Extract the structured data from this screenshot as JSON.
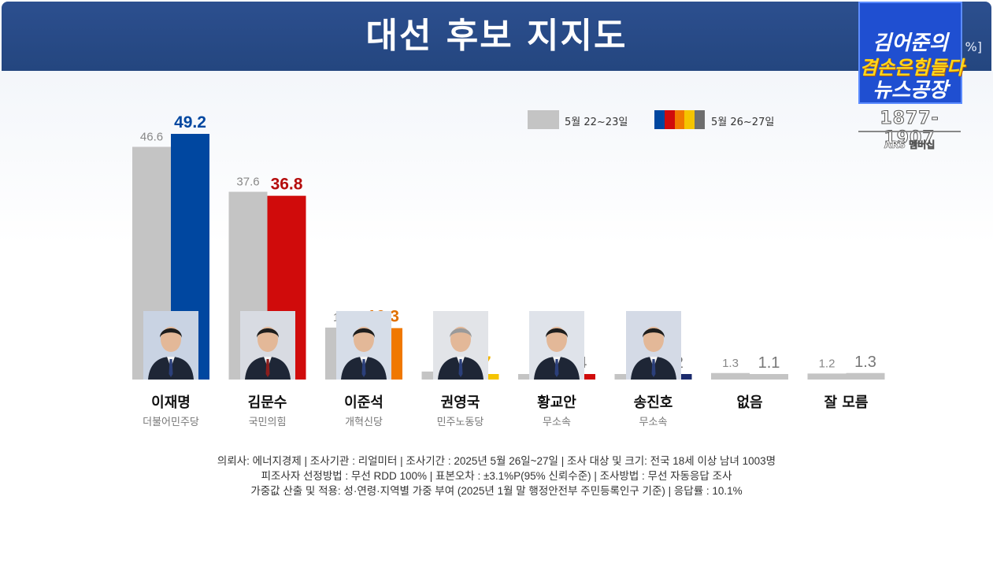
{
  "header": {
    "title": "대선 후보 지지도",
    "unit": "%]"
  },
  "logo": {
    "line1": "김어준의",
    "line2": "겸손은힘들다",
    "line3": "뉴스공장",
    "phone": "1877-1907",
    "sub": "ARS 멤버십"
  },
  "legend": {
    "prev_label": "5월 22~23일",
    "curr_label": "5월 26~27일",
    "curr_colors": [
      "#0047a0",
      "#d00b0b",
      "#f07800",
      "#f5c400",
      "#6e6e6e"
    ]
  },
  "candidates": [
    {
      "name": "이재명",
      "party": "더불어민주당"
    },
    {
      "name": "김문수",
      "party": "국민의힘"
    },
    {
      "name": "이준석",
      "party": "개혁신당"
    },
    {
      "name": "권영국",
      "party": "민주노동당"
    },
    {
      "name": "황교안",
      "party": "무소속"
    },
    {
      "name": "송진호",
      "party": "무소속"
    },
    {
      "name": "없음",
      "party": ""
    },
    {
      "name": "잘 모름",
      "party": ""
    }
  ],
  "chart_data": {
    "type": "bar",
    "categories": [
      "이재명",
      "김문수",
      "이준석",
      "권영국",
      "황교안",
      "송진호",
      "없음",
      "잘 모름"
    ],
    "series": [
      {
        "name": "5월 22~23일",
        "color": "#c4c4c4",
        "values": [
          46.6,
          37.6,
          10.4,
          1.6,
          0.9,
          0.3,
          1.3,
          1.2
        ]
      },
      {
        "name": "5월 26~27일",
        "colors": [
          "#0047a0",
          "#d00b0b",
          "#f07800",
          "#f5c400",
          "#d00b0b",
          "#1a2a6c",
          "#c4c4c4",
          "#c4c4c4"
        ],
        "label_colors": [
          "#0047a0",
          "#b50d0d",
          "#e07000",
          "#f0b400",
          "#777777",
          "#777777",
          "#777777",
          "#777777"
        ],
        "values": [
          49.2,
          36.8,
          10.3,
          0.7,
          0.4,
          0.2,
          1.1,
          1.3
        ]
      }
    ],
    "ylim": [
      0,
      55
    ]
  },
  "footnote": {
    "line1": "의뢰사: 에너지경제 | 조사기관 : 리얼미터  |  조사기간 : 2025년 5월 26일~27일 | 조사 대상 및 크기: 전국 18세 이상 남녀 1003명",
    "line2": "피조사자 선정방법 : 무선 RDD 100% | 표본오차 : ±3.1%P(95% 신뢰수준) | 조사방법 : 무선 자동응답 조사",
    "line3": "가중값 산출 및 적용: 성·연령·지역별 가중 부여 (2025년 1월 말 행정안전부 주민등록인구 기준) | 응답률 : 10.1%"
  }
}
